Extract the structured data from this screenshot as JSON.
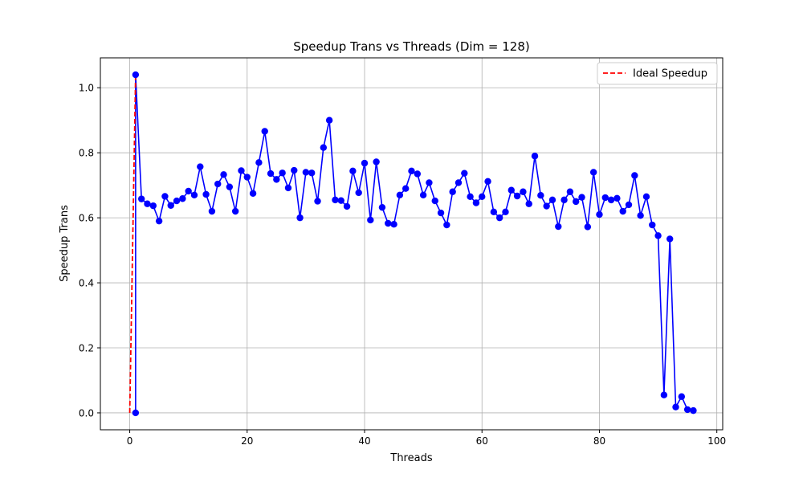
{
  "chart_data": {
    "type": "line",
    "title": "Speedup Trans vs Threads (Dim = 128)",
    "xlabel": "Threads",
    "ylabel": "Speedup Trans",
    "xlim": [
      -5,
      101
    ],
    "ylim": [
      -0.052,
      1.092
    ],
    "xticks": [
      0,
      20,
      40,
      60,
      80,
      100
    ],
    "yticks": [
      0.0,
      0.2,
      0.4,
      0.6,
      0.8,
      1.0
    ],
    "xtick_labels": [
      "0",
      "20",
      "40",
      "60",
      "80",
      "100"
    ],
    "ytick_labels": [
      "0.0",
      "0.2",
      "0.4",
      "0.6",
      "0.8",
      "1.0"
    ],
    "grid": true,
    "legend_position": "top-right",
    "series": [
      {
        "style": "solid line with circle markers",
        "color": "#0000ff",
        "x": [
          1,
          1,
          2,
          3,
          4,
          5,
          6,
          7,
          8,
          9,
          10,
          11,
          12,
          13,
          14,
          15,
          16,
          17,
          18,
          19,
          20,
          21,
          22,
          23,
          24,
          25,
          26,
          27,
          28,
          29,
          30,
          31,
          32,
          33,
          34,
          35,
          36,
          37,
          38,
          39,
          40,
          41,
          42,
          43,
          44,
          45,
          46,
          47,
          48,
          49,
          50,
          51,
          52,
          53,
          54,
          55,
          56,
          57,
          58,
          59,
          60,
          61,
          62,
          63,
          64,
          65,
          66,
          67,
          68,
          69,
          70,
          71,
          72,
          73,
          74,
          75,
          76,
          77,
          78,
          79,
          80,
          81,
          82,
          83,
          84,
          85,
          86,
          87,
          88,
          89,
          90,
          91,
          92,
          93,
          94,
          95,
          96
        ],
        "y": [
          0.0,
          1.04,
          0.658,
          0.643,
          0.637,
          0.59,
          0.666,
          0.638,
          0.652,
          0.659,
          0.682,
          0.67,
          0.757,
          0.672,
          0.62,
          0.704,
          0.733,
          0.695,
          0.62,
          0.745,
          0.725,
          0.675,
          0.77,
          0.866,
          0.736,
          0.718,
          0.738,
          0.692,
          0.746,
          0.6,
          0.74,
          0.738,
          0.651,
          0.816,
          0.9,
          0.655,
          0.653,
          0.635,
          0.744,
          0.677,
          0.768,
          0.593,
          0.772,
          0.632,
          0.583,
          0.58,
          0.67,
          0.69,
          0.744,
          0.735,
          0.67,
          0.708,
          0.652,
          0.615,
          0.578,
          0.68,
          0.708,
          0.737,
          0.665,
          0.646,
          0.665,
          0.712,
          0.618,
          0.6,
          0.618,
          0.685,
          0.667,
          0.68,
          0.643,
          0.79,
          0.669,
          0.636,
          0.655,
          0.573,
          0.655,
          0.68,
          0.65,
          0.663,
          0.572,
          0.74,
          0.61,
          0.662,
          0.655,
          0.66,
          0.62,
          0.64,
          0.73,
          0.607,
          0.665,
          0.578,
          0.545,
          0.055,
          0.535,
          0.018,
          0.05,
          0.01,
          0.007
        ]
      },
      {
        "name": "Ideal Speedup",
        "style": "dashed line",
        "color": "#ff0000",
        "x": [
          0,
          1
        ],
        "y": [
          0.0,
          1.04
        ]
      }
    ]
  }
}
